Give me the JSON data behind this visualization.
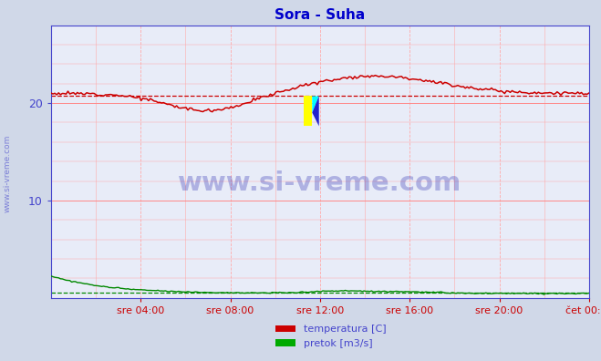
{
  "title": "Sora - Suha",
  "title_color": "#0000cc",
  "bg_color": "#d0d8e8",
  "plot_bg_color": "#e8ecf8",
  "ylim": [
    0,
    28
  ],
  "yticks": [
    10,
    20
  ],
  "xtick_labels": [
    "sre 04:00",
    "sre 08:00",
    "sre 12:00",
    "sre 16:00",
    "sre 20:00",
    "čet 00:00"
  ],
  "watermark_text": "www.si-vreme.com",
  "watermark_color": "#1a1aaa",
  "watermark_alpha": 0.28,
  "legend_labels": [
    "temperatura [C]",
    "pretok [m3/s]"
  ],
  "legend_colors": [
    "#cc0000",
    "#00aa00"
  ],
  "temp_color": "#cc0000",
  "flow_color": "#008800",
  "avg_temp_color": "#cc0000",
  "avg_flow_color": "#008800",
  "spine_color": "#4444cc",
  "tick_color": "#cc0000",
  "label_color": "#4444cc",
  "n_points": 288,
  "avg_temp": 20.8,
  "avg_flow": 0.55
}
